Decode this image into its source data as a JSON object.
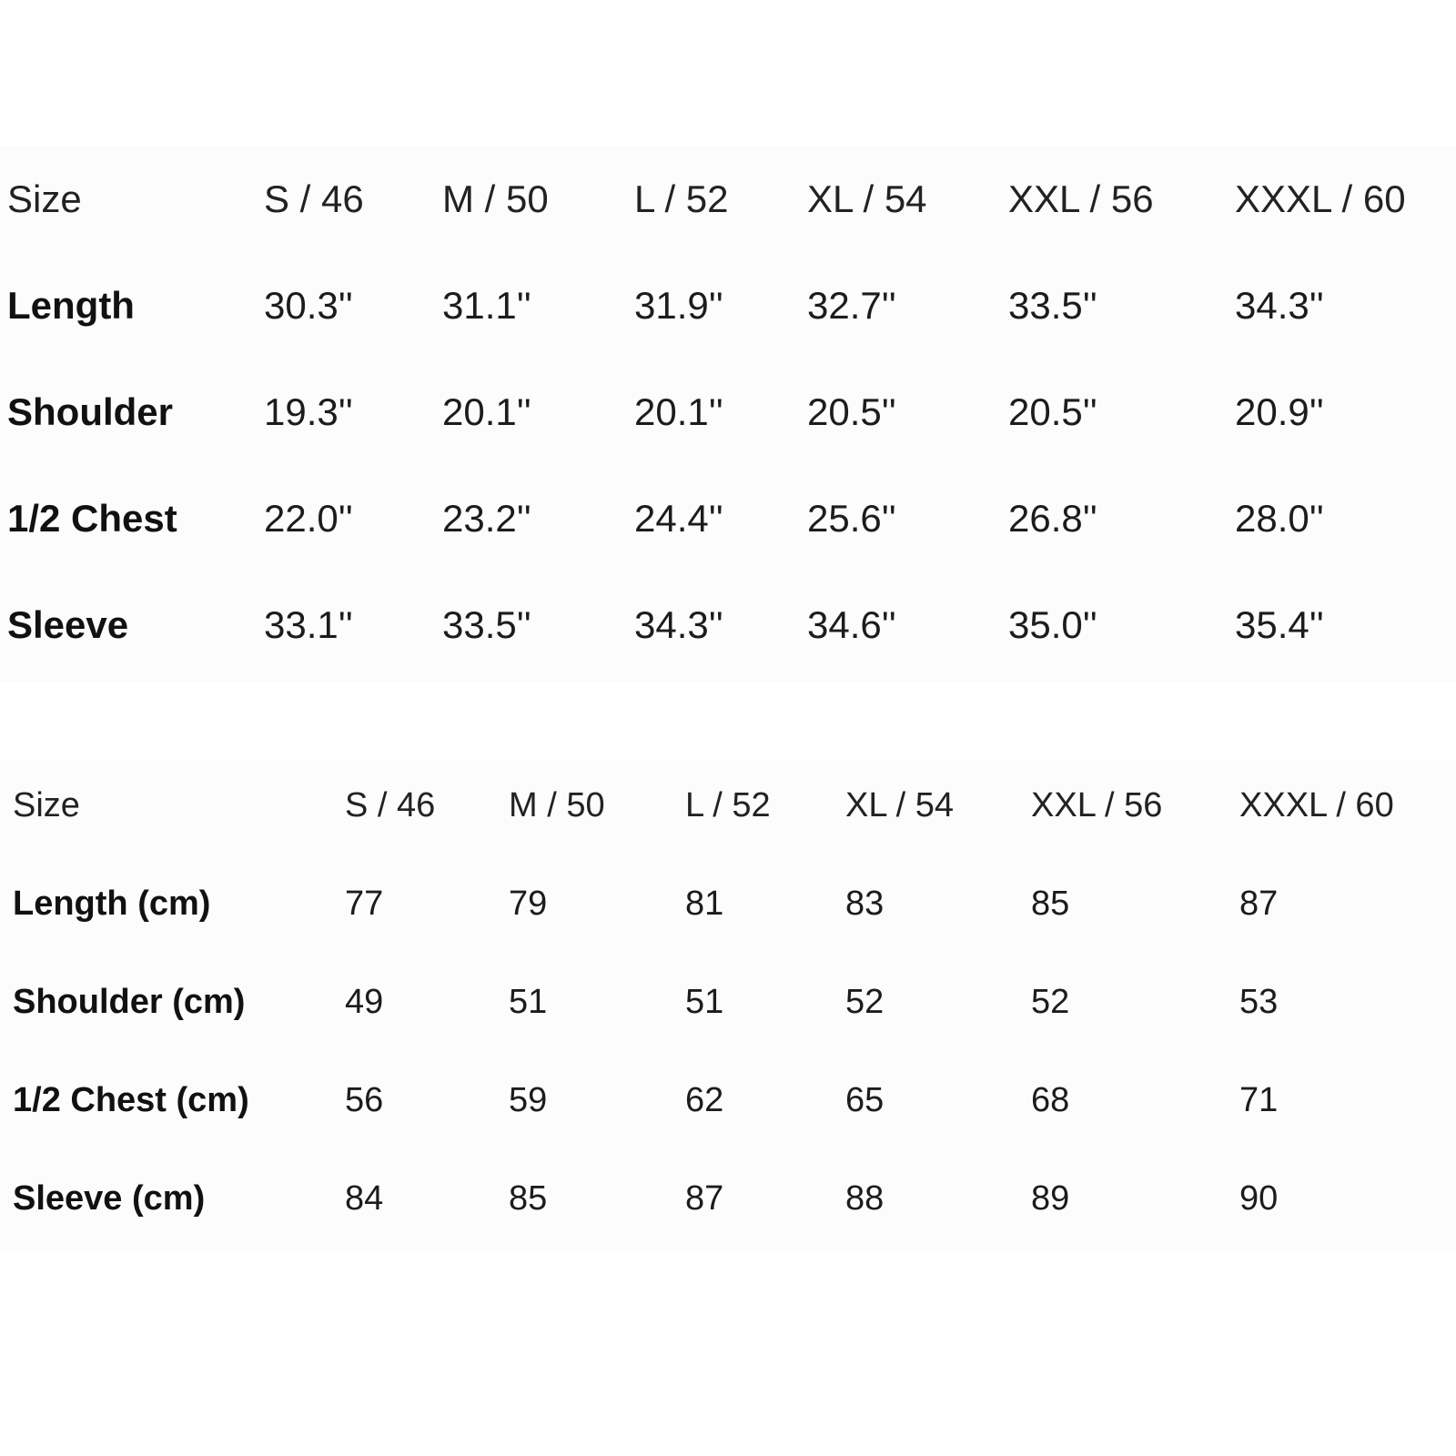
{
  "tables": [
    {
      "header": [
        "Size",
        "S / 46",
        "M / 50",
        "L / 52",
        "XL / 54",
        "XXL / 56",
        "XXXL / 60"
      ],
      "rows": [
        {
          "label": "Length",
          "values": [
            "30.3''",
            "31.1''",
            "31.9''",
            "32.7''",
            "33.5''",
            "34.3''"
          ]
        },
        {
          "label": "Shoulder",
          "values": [
            "19.3''",
            "20.1''",
            "20.1''",
            "20.5''",
            "20.5''",
            "20.9''"
          ]
        },
        {
          "label": "1/2 Chest",
          "values": [
            "22.0''",
            "23.2''",
            "24.4''",
            "25.6''",
            "26.8''",
            "28.0''"
          ]
        },
        {
          "label": "Sleeve",
          "values": [
            "33.1''",
            "33.5''",
            "34.3''",
            "34.6''",
            "35.0''",
            "35.4''"
          ]
        }
      ]
    },
    {
      "header": [
        "Size",
        "S / 46",
        "M / 50",
        "L / 52",
        "XL / 54",
        "XXL / 56",
        "XXXL / 60"
      ],
      "rows": [
        {
          "label": "Length (cm)",
          "values": [
            "77",
            "79",
            "81",
            "83",
            "85",
            "87"
          ]
        },
        {
          "label": "Shoulder (cm)",
          "values": [
            "49",
            "51",
            "51",
            "52",
            "52",
            "53"
          ]
        },
        {
          "label": "1/2 Chest (cm)",
          "values": [
            "56",
            "59",
            "62",
            "65",
            "68",
            "71"
          ]
        },
        {
          "label": "Sleeve (cm)",
          "values": [
            "84",
            "85",
            "87",
            "88",
            "89",
            "90"
          ]
        }
      ]
    }
  ]
}
